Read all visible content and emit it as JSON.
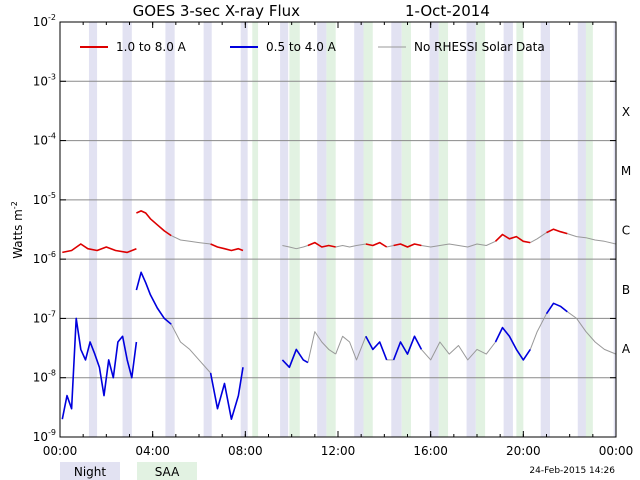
{
  "chart_data": {
    "type": "line",
    "title": "GOES 3-sec X-ray Flux",
    "date_label": "1-Oct-2014",
    "ylabel": "Watts m",
    "ylabel_exp": "-2",
    "y_scale": "log",
    "ylim": [
      1e-09,
      0.01
    ],
    "y_ticks": [
      {
        "base": "10",
        "exp": "-2",
        "value": 0.01
      },
      {
        "base": "10",
        "exp": "-3",
        "value": 0.001
      },
      {
        "base": "10",
        "exp": "-4",
        "value": 0.0001
      },
      {
        "base": "10",
        "exp": "-5",
        "value": 1e-05
      },
      {
        "base": "10",
        "exp": "-6",
        "value": 1e-06
      },
      {
        "base": "10",
        "exp": "-7",
        "value": 1e-07
      },
      {
        "base": "10",
        "exp": "-8",
        "value": 1e-08
      },
      {
        "base": "10",
        "exp": "-9",
        "value": 1e-09
      }
    ],
    "flare_classes": [
      {
        "label": "X",
        "value": 0.0001
      },
      {
        "label": "M",
        "value": 1e-05
      },
      {
        "label": "C",
        "value": 1e-06
      },
      {
        "label": "B",
        "value": 1e-07
      },
      {
        "label": "A",
        "value": 1e-08
      }
    ],
    "xlim": [
      0,
      24
    ],
    "x_ticks": [
      {
        "label": "00:00",
        "hour": 0
      },
      {
        "label": "04:00",
        "hour": 4
      },
      {
        "label": "08:00",
        "hour": 8
      },
      {
        "label": "12:00",
        "hour": 12
      },
      {
        "label": "16:00",
        "hour": 16
      },
      {
        "label": "20:00",
        "hour": 20
      },
      {
        "label": "00:00",
        "hour": 24
      }
    ],
    "grid": "horizontal at each decade",
    "legend_position": "top",
    "series": [
      {
        "name": "1.0 to 8.0 A",
        "color": "#dd0000",
        "rhessi_segments": [
          {
            "x": [
              0.1,
              0.5,
              0.9,
              1.2,
              1.6,
              2.0,
              2.4,
              2.9,
              3.3
            ],
            "y": [
              1.3e-06,
              1.4e-06,
              1.8e-06,
              1.5e-06,
              1.4e-06,
              1.6e-06,
              1.4e-06,
              1.3e-06,
              1.5e-06
            ]
          },
          {
            "x": [
              3.3,
              3.5,
              3.7,
              3.9,
              4.2,
              4.5,
              4.8
            ],
            "y": [
              6e-06,
              6.5e-06,
              6e-06,
              4.8e-06,
              3.8e-06,
              3e-06,
              2.5e-06
            ]
          },
          {
            "x": [
              6.5,
              6.8,
              7.1,
              7.4,
              7.7,
              7.9
            ],
            "y": [
              1.8e-06,
              1.6e-06,
              1.5e-06,
              1.4e-06,
              1.5e-06,
              1.4e-06
            ]
          },
          {
            "x": [
              10.7,
              11.0,
              11.3,
              11.6,
              11.9
            ],
            "y": [
              1.7e-06,
              1.9e-06,
              1.6e-06,
              1.7e-06,
              1.6e-06
            ]
          },
          {
            "x": [
              13.2,
              13.5,
              13.8,
              14.1
            ],
            "y": [
              1.8e-06,
              1.7e-06,
              1.9e-06,
              1.6e-06
            ]
          },
          {
            "x": [
              14.4,
              14.7,
              15.0,
              15.3,
              15.6
            ],
            "y": [
              1.7e-06,
              1.8e-06,
              1.6e-06,
              1.8e-06,
              1.7e-06
            ]
          },
          {
            "x": [
              18.8,
              19.1,
              19.4,
              19.7,
              20.0,
              20.3
            ],
            "y": [
              2e-06,
              2.6e-06,
              2.2e-06,
              2.4e-06,
              2e-06,
              1.9e-06
            ]
          },
          {
            "x": [
              21.0,
              21.3,
              21.6,
              21.9
            ],
            "y": [
              2.8e-06,
              3.2e-06,
              2.9e-06,
              2.7e-06
            ]
          }
        ],
        "gap_segments": [
          {
            "x": [
              4.8,
              5.2,
              5.6,
              6.0,
              6.5
            ],
            "y": [
              2.5e-06,
              2.1e-06,
              2e-06,
              1.9e-06,
              1.8e-06
            ]
          },
          {
            "x": [
              9.6,
              9.9,
              10.2,
              10.5,
              10.7
            ],
            "y": [
              1.7e-06,
              1.6e-06,
              1.5e-06,
              1.6e-06,
              1.7e-06
            ]
          },
          {
            "x": [
              11.9,
              12.2,
              12.5,
              12.8,
              13.2
            ],
            "y": [
              1.6e-06,
              1.7e-06,
              1.6e-06,
              1.7e-06,
              1.8e-06
            ]
          },
          {
            "x": [
              14.1,
              14.4
            ],
            "y": [
              1.6e-06,
              1.7e-06
            ]
          },
          {
            "x": [
              15.6,
              16.0,
              16.4,
              16.8,
              17.2,
              17.6,
              18.0,
              18.4,
              18.8
            ],
            "y": [
              1.7e-06,
              1.6e-06,
              1.7e-06,
              1.8e-06,
              1.7e-06,
              1.6e-06,
              1.8e-06,
              1.7e-06,
              2e-06
            ]
          },
          {
            "x": [
              20.3,
              20.6,
              21.0
            ],
            "y": [
              1.9e-06,
              2.2e-06,
              2.8e-06
            ]
          },
          {
            "x": [
              21.9,
              22.3,
              22.7,
              23.1,
              23.5,
              24.0
            ],
            "y": [
              2.7e-06,
              2.4e-06,
              2.3e-06,
              2.1e-06,
              2e-06,
              1.8e-06
            ]
          }
        ]
      },
      {
        "name": "0.5 to 4.0 A",
        "color": "#0000dd",
        "rhessi_segments": [
          {
            "x": [
              0.1,
              0.3,
              0.5,
              0.7,
              0.9,
              1.1,
              1.3,
              1.5,
              1.7,
              1.9,
              2.1,
              2.3,
              2.5,
              2.7,
              2.9,
              3.1,
              3.3
            ],
            "y": [
              2e-09,
              5e-09,
              3e-09,
              1e-07,
              3e-08,
              2e-08,
              4e-08,
              2.5e-08,
              1.5e-08,
              5e-09,
              2e-08,
              1e-08,
              4e-08,
              5e-08,
              2e-08,
              1e-08,
              4e-08
            ]
          },
          {
            "x": [
              3.3,
              3.5,
              3.7,
              3.9,
              4.2,
              4.5,
              4.8
            ],
            "y": [
              3e-07,
              6e-07,
              4e-07,
              2.5e-07,
              1.5e-07,
              1e-07,
              8e-08
            ]
          },
          {
            "x": [
              6.5,
              6.8,
              7.1,
              7.4,
              7.7,
              7.9
            ],
            "y": [
              1.2e-08,
              3e-09,
              8e-09,
              2e-09,
              5e-09,
              1.5e-08
            ]
          },
          {
            "x": [
              9.6,
              9.9,
              10.2,
              10.5,
              10.7
            ],
            "y": [
              2e-08,
              1.5e-08,
              3e-08,
              2e-08,
              1.8e-08
            ]
          },
          {
            "x": [
              13.2,
              13.5,
              13.8,
              14.1
            ],
            "y": [
              5e-08,
              3e-08,
              4e-08,
              2e-08
            ]
          },
          {
            "x": [
              14.4,
              14.7,
              15.0,
              15.3,
              15.6
            ],
            "y": [
              2e-08,
              4e-08,
              2.5e-08,
              5e-08,
              3e-08
            ]
          },
          {
            "x": [
              18.8,
              19.1,
              19.4,
              19.7,
              20.0,
              20.3
            ],
            "y": [
              4e-08,
              7e-08,
              5e-08,
              3e-08,
              2e-08,
              3e-08
            ]
          },
          {
            "x": [
              21.0,
              21.3,
              21.6,
              21.9
            ],
            "y": [
              1.2e-07,
              1.8e-07,
              1.6e-07,
              1.3e-07
            ]
          }
        ],
        "gap_segments": [
          {
            "x": [
              4.8,
              5.2,
              5.6,
              6.0,
              6.5
            ],
            "y": [
              8e-08,
              4e-08,
              3e-08,
              2e-08,
              1.2e-08
            ]
          },
          {
            "x": [
              10.7,
              11.0,
              11.3,
              11.6,
              11.9
            ],
            "y": [
              1.8e-08,
              6e-08,
              4e-08,
              3e-08,
              2.5e-08
            ]
          },
          {
            "x": [
              11.9,
              12.2,
              12.5,
              12.8,
              13.2
            ],
            "y": [
              2.5e-08,
              5e-08,
              4e-08,
              2e-08,
              5e-08
            ]
          },
          {
            "x": [
              14.1,
              14.4
            ],
            "y": [
              2e-08,
              2e-08
            ]
          },
          {
            "x": [
              15.6,
              16.0,
              16.4,
              16.8,
              17.2,
              17.6,
              18.0,
              18.4,
              18.8
            ],
            "y": [
              3e-08,
              2e-08,
              4e-08,
              2.5e-08,
              3.5e-08,
              2e-08,
              3e-08,
              2.5e-08,
              4e-08
            ]
          },
          {
            "x": [
              20.3,
              20.6,
              21.0
            ],
            "y": [
              3e-08,
              6e-08,
              1.2e-07
            ]
          },
          {
            "x": [
              21.9,
              22.3,
              22.7,
              23.1,
              23.5,
              24.0
            ],
            "y": [
              1.3e-07,
              1e-07,
              6e-08,
              4e-08,
              3e-08,
              2.5e-08
            ]
          }
        ]
      },
      {
        "name": "No RHESSI Solar Data",
        "color": "#999999"
      }
    ],
    "night_bands_hours": [
      [
        1.25,
        1.6
      ],
      [
        2.7,
        3.1
      ],
      [
        4.55,
        4.95
      ],
      [
        6.2,
        6.55
      ],
      [
        7.8,
        8.1
      ],
      [
        9.5,
        9.85
      ],
      [
        11.1,
        11.5
      ],
      [
        12.7,
        13.1
      ],
      [
        14.3,
        14.75
      ],
      [
        15.95,
        16.35
      ],
      [
        17.55,
        17.95
      ],
      [
        19.15,
        19.55
      ],
      [
        20.75,
        21.15
      ],
      [
        22.35,
        22.75
      ],
      [
        23.9,
        24.0
      ]
    ],
    "saa_bands_hours": [
      [
        8.3,
        8.55
      ],
      [
        9.9,
        10.35
      ],
      [
        11.5,
        11.9
      ],
      [
        13.1,
        13.5
      ],
      [
        14.75,
        15.15
      ],
      [
        16.35,
        16.75
      ],
      [
        17.95,
        18.35
      ],
      [
        19.7,
        20.0
      ],
      [
        22.7,
        23.0
      ]
    ],
    "band_legend": [
      {
        "label": "Night",
        "color": "#e2e2f2"
      },
      {
        "label": "SAA",
        "color": "#e2f2e2"
      }
    ],
    "timestamp": "24-Feb-2015 14:26"
  }
}
